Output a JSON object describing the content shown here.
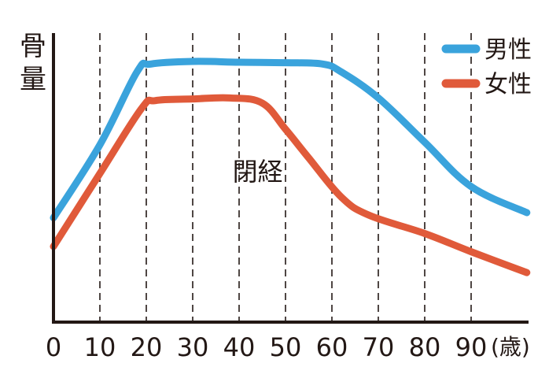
{
  "chart_data": {
    "type": "line",
    "title": "",
    "ylabel_chars": [
      "骨",
      "量"
    ],
    "xlabel": "",
    "x_unit": "(歳)",
    "xlim": [
      0,
      103
    ],
    "ylim": [
      0,
      100
    ],
    "x_ticks": [
      0,
      10,
      20,
      30,
      40,
      50,
      60,
      70,
      80,
      90
    ],
    "x_tick_labels": [
      "0",
      "10",
      "20",
      "30",
      "40",
      "50",
      "60",
      "70",
      "80",
      "90"
    ],
    "grid": "vertical-dashed",
    "legend_position": "top-right",
    "series": [
      {
        "name": "男性",
        "color": "#3aa3dc",
        "x": [
          0,
          10,
          18,
          21,
          30,
          40,
          50,
          58,
          62,
          70,
          80,
          90,
          102
        ],
        "y": [
          40,
          68,
          96,
          99,
          100,
          99.7,
          99.5,
          99,
          96,
          86,
          69,
          52,
          42
        ]
      },
      {
        "name": "女性",
        "color": "#e05a3a",
        "x": [
          0,
          10,
          19,
          22,
          30,
          38,
          45,
          50,
          55,
          62,
          68,
          80,
          90,
          102
        ],
        "y": [
          29,
          57,
          82,
          85,
          85.6,
          86,
          84,
          74,
          63,
          48,
          41,
          34,
          27,
          19
        ]
      }
    ],
    "annotations": [
      {
        "text": "閉経",
        "x": 44,
        "y": 58
      }
    ]
  }
}
